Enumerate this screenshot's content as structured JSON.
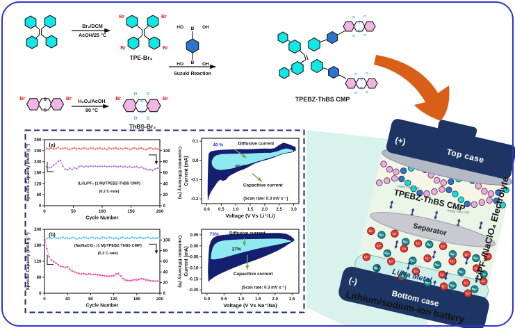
{
  "scheme": {
    "br": "Br",
    "s": "S",
    "o": "O",
    "ho": "HO",
    "b_atom": "B",
    "oh": "OH",
    "rxn1_line1": "Br₂/DCM",
    "rxn1_line2": "AcOH/25 °C",
    "tpe_br4": "TPE-Br₄",
    "suzuki": "Suzuki Reaction",
    "rxn2_line1": "H₂O₂/AcOH",
    "rxn2_line2": "90 °C",
    "thbs_br2": "ThBS-Br₂",
    "polymer": "TPEBZ-ThBS CMP"
  },
  "chart_data": [
    {
      "id": "cycling-li",
      "type": "scatter",
      "panel": "(a)",
      "xlabel": "Cycle Number",
      "ylabel_left": "Specific Capacity (mAh g⁻¹)",
      "ylabel_right": "Coulombic Efficiency (%)",
      "xlim": [
        0,
        200
      ],
      "xticks": [
        0,
        50,
        100,
        150,
        200
      ],
      "ylim_left": [
        0,
        360
      ],
      "yticks_left": [
        0,
        60,
        120,
        180,
        240,
        300,
        360
      ],
      "ylim_right": [
        0,
        120
      ],
      "yticks_right": [
        0,
        20,
        40,
        60,
        80,
        100
      ],
      "annotation": [
        "(Li/LiPF₆ (1 M)/TPEBZ-ThBS CMP)",
        "(0.2 C-rate)"
      ],
      "x": [
        0,
        4,
        8,
        12,
        16,
        20,
        24,
        28,
        32,
        36,
        40,
        44,
        48,
        52,
        56,
        60,
        64,
        68,
        72,
        76,
        80,
        84,
        88,
        92,
        96,
        100,
        104,
        108,
        112,
        116,
        120,
        124,
        128,
        132,
        136,
        140,
        144,
        148,
        152,
        156,
        160,
        164,
        168,
        172,
        176,
        180,
        184,
        188,
        192,
        196,
        200
      ],
      "series": [
        {
          "name": "Coulombic Efficiency",
          "axis": "right",
          "color": "#ef6b6b",
          "values": [
            99,
            104,
            103,
            105,
            103,
            104,
            106,
            103,
            104,
            105,
            103,
            102,
            104,
            105,
            103,
            104,
            103,
            105,
            104,
            103,
            105,
            104,
            103,
            104,
            105,
            103,
            104,
            102,
            105,
            103,
            104,
            105,
            103,
            104,
            103,
            105,
            104,
            102,
            104,
            105,
            103,
            104,
            105,
            103,
            102,
            104,
            105,
            103,
            104,
            103,
            104
          ]
        },
        {
          "name": "Specific Capacity",
          "axis": "left",
          "color": "#b27de8",
          "values": [
            218,
            211,
            207,
            210,
            221,
            230,
            243,
            247,
            215,
            199,
            196,
            204,
            197,
            207,
            201,
            213,
            217,
            211,
            215,
            213,
            217,
            214,
            216,
            213,
            215,
            214,
            216,
            212,
            215,
            213,
            216,
            214,
            212,
            215,
            211,
            214,
            209,
            213,
            209,
            211,
            213,
            207,
            211,
            204,
            199,
            195,
            197,
            193,
            201,
            205,
            203
          ]
        }
      ]
    },
    {
      "id": "cycling-na",
      "type": "scatter",
      "panel": "(b)",
      "xlabel": "Cycle Number",
      "ylabel_left": "Specific Capacity (mAh g⁻¹)",
      "ylabel_right": "Coulombic Efficiency (%)",
      "xlim": [
        0,
        200
      ],
      "xticks": [
        0,
        40,
        80,
        120,
        160,
        200
      ],
      "ylim_left": [
        0,
        240
      ],
      "yticks_left": [
        0,
        60,
        120,
        180,
        240
      ],
      "ylim_right": [
        0,
        120
      ],
      "yticks_right": [
        0,
        20,
        40,
        60,
        80,
        100
      ],
      "annotation": [
        "(Na/NaClO₄ (1 M)/TPEBZ-ThBS CMP)",
        "(0.2 C-rate)"
      ],
      "x": [
        0,
        4,
        8,
        12,
        16,
        20,
        24,
        28,
        32,
        36,
        40,
        44,
        48,
        52,
        56,
        60,
        64,
        68,
        72,
        76,
        80,
        84,
        88,
        92,
        96,
        100,
        104,
        108,
        112,
        116,
        120,
        124,
        128,
        132,
        136,
        140,
        144,
        148,
        152,
        156,
        160,
        164,
        168,
        172,
        176,
        180,
        184,
        188,
        192,
        196,
        200
      ],
      "series": [
        {
          "name": "Coulombic Efficiency",
          "axis": "right",
          "color": "#4cc2f0",
          "values": [
            97,
            103,
            104,
            103,
            105,
            104,
            103,
            104,
            105,
            103,
            104,
            103,
            105,
            104,
            102,
            104,
            103,
            105,
            104,
            103,
            104,
            105,
            103,
            104,
            103,
            105,
            104,
            103,
            105,
            104,
            103,
            104,
            102,
            104,
            105,
            103,
            104,
            103,
            105,
            104,
            103,
            105,
            104,
            103,
            104,
            105,
            103,
            104,
            103,
            104,
            103
          ]
        },
        {
          "name": "Specific Capacity",
          "axis": "left",
          "color": "#f2489b",
          "values": [
            212,
            168,
            138,
            124,
            119,
            113,
            107,
            101,
            99,
            97,
            99,
            90,
            84,
            80,
            77,
            74,
            72,
            74,
            71,
            73,
            72,
            70,
            71,
            69,
            68,
            67,
            66,
            64,
            64,
            65,
            66,
            72,
            74,
            65,
            55,
            50,
            48,
            47,
            49,
            51,
            50,
            52,
            55,
            53,
            50,
            49,
            47,
            46,
            45,
            46,
            45
          ]
        }
      ]
    },
    {
      "id": "cv-li",
      "type": "cv",
      "xlabel": "Voltage (V Vs Li⁺/Li)",
      "ylabel": "Current (mA)",
      "xlim": [
        -0.18,
        3.18
      ],
      "xticks": [
        0,
        0.5,
        1,
        1.5,
        2,
        2.5,
        3
      ],
      "xtick_labels": [
        "0.0",
        "0.5",
        "1.0",
        "1.5",
        "2.0",
        "2.5",
        "3.0"
      ],
      "ylim": [
        -0.225,
        0.115
      ],
      "yticks": [
        0.1,
        0,
        -0.1,
        -0.2
      ],
      "ytick_labels": [
        "0.1",
        "0.0",
        "-0.1",
        "-0.2"
      ],
      "diffusive_pct": "40 %",
      "diffusive_label": "Diffusive current",
      "capacitive_pct": "60 %",
      "capacitive_label": "Capacitive current",
      "scan_rate": "(Scan rate: 0.3 mV s⁻¹)",
      "outer_loop": [
        [
          0.08,
          0.035
        ],
        [
          0.15,
          0.046
        ],
        [
          0.3,
          0.05
        ],
        [
          0.5,
          0.053
        ],
        [
          0.8,
          0.055
        ],
        [
          1.1,
          0.057
        ],
        [
          1.4,
          0.056
        ],
        [
          1.7,
          0.058
        ],
        [
          2.0,
          0.06
        ],
        [
          2.2,
          0.059
        ],
        [
          2.35,
          0.062
        ],
        [
          2.5,
          0.078
        ],
        [
          2.65,
          0.09
        ],
        [
          2.8,
          0.084
        ],
        [
          2.95,
          0.075
        ],
        [
          3.06,
          0.068
        ],
        [
          3.06,
          0.052
        ],
        [
          2.9,
          0.05
        ],
        [
          2.7,
          0.044
        ],
        [
          2.5,
          0.03
        ],
        [
          2.3,
          0.016
        ],
        [
          2.1,
          0.006
        ],
        [
          1.9,
          -0.002
        ],
        [
          1.7,
          -0.012
        ],
        [
          1.55,
          -0.022
        ],
        [
          1.4,
          -0.036
        ],
        [
          1.25,
          -0.046
        ],
        [
          1.1,
          -0.054
        ],
        [
          0.95,
          -0.065
        ],
        [
          0.85,
          -0.073
        ],
        [
          0.75,
          -0.082
        ],
        [
          0.65,
          -0.1
        ],
        [
          0.55,
          -0.105
        ],
        [
          0.48,
          -0.098
        ],
        [
          0.4,
          -0.105
        ],
        [
          0.33,
          -0.118
        ],
        [
          0.26,
          -0.135
        ],
        [
          0.18,
          -0.152
        ],
        [
          0.11,
          -0.17
        ],
        [
          0.06,
          -0.19
        ],
        [
          0.045,
          -0.205
        ],
        [
          0.04,
          -0.16
        ],
        [
          0.045,
          -0.1
        ],
        [
          0.055,
          -0.04
        ],
        [
          0.065,
          0.005
        ],
        [
          0.08,
          0.035
        ]
      ],
      "inner_loop": [
        [
          0.16,
          -0.003
        ],
        [
          0.22,
          0.016
        ],
        [
          0.32,
          0.028
        ],
        [
          0.5,
          0.034
        ],
        [
          0.8,
          0.036
        ],
        [
          1.1,
          0.037
        ],
        [
          1.4,
          0.037
        ],
        [
          1.7,
          0.039
        ],
        [
          2.0,
          0.041
        ],
        [
          2.2,
          0.041
        ],
        [
          2.4,
          0.047
        ],
        [
          2.6,
          0.058
        ],
        [
          2.75,
          0.064
        ],
        [
          2.9,
          0.059
        ],
        [
          3.0,
          0.053
        ],
        [
          3.0,
          0.045
        ],
        [
          2.85,
          0.041
        ],
        [
          2.65,
          0.035
        ],
        [
          2.45,
          0.025
        ],
        [
          2.25,
          0.015
        ],
        [
          2.05,
          0.006
        ],
        [
          1.85,
          -0.003
        ],
        [
          1.65,
          -0.012
        ],
        [
          1.45,
          -0.021
        ],
        [
          1.25,
          -0.029
        ],
        [
          1.05,
          -0.037
        ],
        [
          0.85,
          -0.044
        ],
        [
          0.65,
          -0.049
        ],
        [
          0.5,
          -0.052
        ],
        [
          0.38,
          -0.05
        ],
        [
          0.28,
          -0.044
        ],
        [
          0.2,
          -0.032
        ],
        [
          0.16,
          -0.018
        ],
        [
          0.16,
          -0.003
        ]
      ]
    },
    {
      "id": "cv-na",
      "type": "cv",
      "xlabel": "Voltage (V Vs Na⁺/Na)",
      "ylabel": "Current (mA)",
      "xlim": [
        -0.16,
        2.7
      ],
      "xticks": [
        0,
        0.5,
        1,
        1.5,
        2,
        2.5
      ],
      "xtick_labels": [
        "0.0",
        "0.5",
        "1.0",
        "1.5",
        "2.0",
        "2.5"
      ],
      "ylim": [
        -0.215,
        0.075
      ],
      "yticks": [
        0.05,
        0,
        -0.05,
        -0.1,
        -0.15,
        -0.2
      ],
      "ytick_labels": [
        "0.05",
        "0.00",
        "-0.05",
        "-0.10",
        "-0.15",
        "-0.20"
      ],
      "diffusive_pct": "73%",
      "diffusive_label": "Diffusive current",
      "capacitive_pct": "27%",
      "capacitive_label": "Capacitive current",
      "scan_rate": "(Scan rate: 0.3 mV s⁻¹)",
      "outer_loop": [
        [
          0.05,
          -0.062
        ],
        [
          0.06,
          -0.03
        ],
        [
          0.08,
          0.0
        ],
        [
          0.12,
          0.02
        ],
        [
          0.18,
          0.034
        ],
        [
          0.28,
          0.043
        ],
        [
          0.45,
          0.048
        ],
        [
          0.7,
          0.051
        ],
        [
          1.0,
          0.053
        ],
        [
          1.3,
          0.054
        ],
        [
          1.6,
          0.056
        ],
        [
          1.9,
          0.057
        ],
        [
          2.15,
          0.057
        ],
        [
          2.32,
          0.053
        ],
        [
          2.45,
          0.044
        ],
        [
          2.55,
          0.03
        ],
        [
          2.55,
          0.024
        ],
        [
          2.42,
          0.012
        ],
        [
          2.25,
          -0.005
        ],
        [
          2.05,
          -0.022
        ],
        [
          1.85,
          -0.036
        ],
        [
          1.65,
          -0.049
        ],
        [
          1.45,
          -0.061
        ],
        [
          1.25,
          -0.072
        ],
        [
          1.05,
          -0.082
        ],
        [
          0.85,
          -0.094
        ],
        [
          0.65,
          -0.107
        ],
        [
          0.5,
          -0.117
        ],
        [
          0.36,
          -0.127
        ],
        [
          0.25,
          -0.136
        ],
        [
          0.16,
          -0.145
        ],
        [
          0.09,
          -0.153
        ],
        [
          0.05,
          -0.16
        ],
        [
          0.04,
          -0.125
        ],
        [
          0.04,
          -0.095
        ],
        [
          0.05,
          -0.062
        ]
      ],
      "inner_loop": [
        [
          0.1,
          -0.06
        ],
        [
          0.12,
          -0.032
        ],
        [
          0.16,
          -0.008
        ],
        [
          0.22,
          0.008
        ],
        [
          0.32,
          0.019
        ],
        [
          0.5,
          0.026
        ],
        [
          0.75,
          0.029
        ],
        [
          1.0,
          0.031
        ],
        [
          1.3,
          0.032
        ],
        [
          1.6,
          0.033
        ],
        [
          1.9,
          0.034
        ],
        [
          2.15,
          0.034
        ],
        [
          2.32,
          0.031
        ],
        [
          2.48,
          0.024
        ],
        [
          2.48,
          0.019
        ],
        [
          2.3,
          0.012
        ],
        [
          2.1,
          0.005
        ],
        [
          1.9,
          -0.001
        ],
        [
          1.7,
          -0.007
        ],
        [
          1.5,
          -0.014
        ],
        [
          1.3,
          -0.021
        ],
        [
          1.1,
          -0.029
        ],
        [
          0.9,
          -0.037
        ],
        [
          0.7,
          -0.046
        ],
        [
          0.52,
          -0.054
        ],
        [
          0.38,
          -0.059
        ],
        [
          0.26,
          -0.062
        ],
        [
          0.16,
          -0.063
        ],
        [
          0.1,
          -0.06
        ]
      ]
    }
  ],
  "battery": {
    "plus": "(+)",
    "top_case": "Top case",
    "cmp": "TPEBZ-ThBS CMP",
    "chain_tag": "TPEBZ ThBS CMP",
    "separator": "Separator",
    "metal": "Li/Na Metal",
    "minus": "(-)",
    "bottom_case": "Bottom case",
    "electrolyte": "LiPF₆/NaClO₄ Electrolyte",
    "caption": "Lithium/sodium-ion battery",
    "li_label": "Li⁺",
    "na_label": "Na⁺",
    "li_ions": [
      [
        -86,
        46
      ],
      [
        -52,
        42
      ],
      [
        -16,
        48
      ],
      [
        20,
        44
      ],
      [
        56,
        48
      ],
      [
        86,
        44
      ],
      [
        -70,
        64
      ],
      [
        -34,
        60
      ],
      [
        2,
        66
      ],
      [
        38,
        62
      ],
      [
        74,
        64
      ],
      [
        -84,
        84
      ],
      [
        -48,
        82
      ],
      [
        -10,
        88
      ],
      [
        28,
        84
      ],
      [
        64,
        88
      ],
      [
        88,
        80
      ],
      [
        -28,
        100
      ],
      [
        34,
        100
      ],
      [
        70,
        102
      ]
    ],
    "na_ions": [
      [
        -70,
        48
      ],
      [
        -34,
        50
      ],
      [
        0,
        46
      ],
      [
        36,
        52
      ],
      [
        70,
        50
      ],
      [
        -56,
        72
      ],
      [
        -18,
        74
      ],
      [
        18,
        72
      ],
      [
        54,
        74
      ],
      [
        86,
        70
      ],
      [
        -66,
        96
      ],
      [
        -26,
        98
      ],
      [
        10,
        100
      ],
      [
        46,
        96
      ],
      [
        78,
        94
      ]
    ]
  },
  "colors": {
    "frame": "#2b35cf",
    "dash": "#1b2a6b",
    "wedge": "#d9f3ec",
    "orange": "#d95f18",
    "navy_case": "#1e3563",
    "cv_navy": "#141f70",
    "cv_cyan": "#8feaef",
    "hex_cyan": "#12e7e7",
    "hex_pink": "#f2b6e6",
    "hex_blue": "#2d74cc",
    "br_red": "#ee1111",
    "os_blue": "#3399ff",
    "li_red": "#e23a33",
    "na_teal": "#1a8a90",
    "green": "#6aa84f",
    "pct_blue": "#2233cc"
  }
}
